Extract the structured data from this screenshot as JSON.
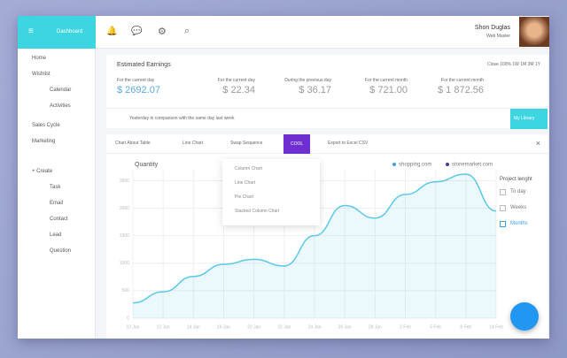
{
  "header": {
    "logo": "Dashboard",
    "user_name": "Shon Duglas",
    "user_role": "Web Master"
  },
  "sidebar": {
    "items": [
      "Home",
      "Wishlist",
      "Calendar",
      "Activities",
      "Sales Cycle",
      "Marketing",
      "+ Create",
      "Task",
      "Email",
      "Contact",
      "Lead",
      "Question"
    ]
  },
  "earnings": {
    "title": "Estimated Earnings",
    "range": "Close 100% 1W 1M 3M 1Y",
    "items": [
      {
        "label": "For the current day",
        "value": "$ 2692.07"
      },
      {
        "label": "For the current day",
        "value": "$ 22.34"
      },
      {
        "label": "During the previous day",
        "value": "$ 36.17"
      },
      {
        "label": "For the current month",
        "value": "$ 721.00"
      },
      {
        "label": "For the current month",
        "value": "$ 1 872.56"
      }
    ],
    "note": "Yesterday in comparison with the same day last week",
    "button": "My Library"
  },
  "toolbar": {
    "items": [
      "Chart About Table",
      "Line Chart",
      "Swap Sequence",
      "COOL",
      "Export to Excel CSV"
    ]
  },
  "dropdown": {
    "items": [
      "Column Chart",
      "Line Chart",
      "Pie Chart",
      "Stacked Column Chart"
    ]
  },
  "project_length": {
    "title": "Project lenght",
    "options": [
      "To day",
      "Weeks",
      "Months"
    ]
  },
  "chart_data": {
    "type": "line",
    "title": "Quantity",
    "categories": [
      "10 Jan",
      "12 Jan",
      "14 Jan",
      "16 Jan",
      "20 Jan",
      "22 Jan",
      "24 Jan",
      "26 Jan",
      "28 Jan",
      "2 Feb",
      "5 Feb",
      "8 Feb",
      "14 Feb"
    ],
    "series": [
      {
        "name": "shopping.com",
        "color": "#5bc8e8",
        "values": [
          280,
          480,
          760,
          980,
          1070,
          950,
          1500,
          2050,
          1820,
          2250,
          2480,
          2620,
          1950
        ]
      }
    ],
    "legend_entries": [
      {
        "name": "shopping.com",
        "color": "#3aa0e8"
      },
      {
        "name": "stonemarket.com",
        "color": "#3a3f8a"
      }
    ],
    "ylim": [
      0,
      2700
    ],
    "yticks": [
      0,
      500,
      1000,
      1500,
      2000,
      2500
    ],
    "grid": true
  }
}
